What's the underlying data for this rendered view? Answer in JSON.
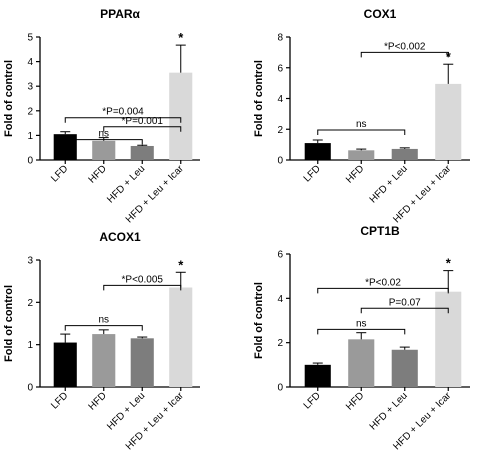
{
  "chart_data": [
    {
      "type": "bar",
      "title": "PPARα",
      "ylabel": "Fold of control",
      "ylim": [
        0,
        5
      ],
      "yticks": [
        "0",
        "1",
        "2",
        "3",
        "4",
        "5"
      ],
      "categories": [
        "LFD",
        "HFD",
        "HFD + Leu",
        "HFD + Leu + Icar"
      ],
      "values": [
        1.05,
        0.78,
        0.57,
        3.55
      ],
      "errors": [
        0.1,
        0.13,
        0.03,
        1.12
      ],
      "bar_colors": [
        "#000000",
        "#9a9a9a",
        "#7d7d7d",
        "#d9d9d9"
      ],
      "star_label": "*",
      "comparisons": [
        {
          "from": 0,
          "to": 3,
          "level": 1.72,
          "label": "*P=0.004"
        },
        {
          "from": 1,
          "to": 3,
          "level": 1.35,
          "label": "*P=0.001"
        },
        {
          "from": 0,
          "to": 2,
          "level": 0.83,
          "label": "ns"
        }
      ]
    },
    {
      "type": "bar",
      "title": "COX1",
      "ylabel": "Fold of control",
      "ylim": [
        0,
        8
      ],
      "yticks": [
        "0",
        "2",
        "4",
        "6",
        "8"
      ],
      "categories": [
        "LFD",
        "HFD",
        "HFD + Leu",
        "HFD + Leu + Icar"
      ],
      "values": [
        1.1,
        0.63,
        0.72,
        4.95
      ],
      "errors": [
        0.2,
        0.08,
        0.07,
        1.28
      ],
      "bar_colors": [
        "#000000",
        "#9a9a9a",
        "#7d7d7d",
        "#d9d9d9"
      ],
      "star_label": "*",
      "comparisons": [
        {
          "from": 1,
          "to": 3,
          "level": 7.0,
          "label": "*P<0.002"
        },
        {
          "from": 0,
          "to": 2,
          "level": 1.95,
          "label": "ns"
        }
      ]
    },
    {
      "type": "bar",
      "title": "ACOX1",
      "ylabel": "Fold of control",
      "ylim": [
        0,
        3
      ],
      "yticks": [
        "0",
        "1",
        "2",
        "3"
      ],
      "categories": [
        "LFD",
        "HFD",
        "HFD + Leu",
        "HFD + Leu + Icar"
      ],
      "values": [
        1.05,
        1.25,
        1.15,
        2.35
      ],
      "errors": [
        0.2,
        0.1,
        0.03,
        0.36
      ],
      "bar_colors": [
        "#000000",
        "#9a9a9a",
        "#7d7d7d",
        "#d9d9d9"
      ],
      "star_label": "*",
      "comparisons": [
        {
          "from": 1,
          "to": 3,
          "level": 2.4,
          "label": "*P<0.005"
        },
        {
          "from": 0,
          "to": 2,
          "level": 1.45,
          "label": "ns"
        }
      ]
    },
    {
      "type": "bar",
      "title": "CPT1B",
      "ylabel": "Fold of control",
      "ylim": [
        0,
        6
      ],
      "yticks": [
        "0",
        "2",
        "4",
        "6"
      ],
      "categories": [
        "LFD",
        "HFD",
        "HFD + Leu",
        "HFD + Leu + Icar"
      ],
      "values": [
        1.0,
        2.15,
        1.68,
        4.3
      ],
      "errors": [
        0.08,
        0.3,
        0.12,
        0.95
      ],
      "bar_colors": [
        "#000000",
        "#9a9a9a",
        "#7d7d7d",
        "#d9d9d9"
      ],
      "star_label": "*",
      "comparisons": [
        {
          "from": 0,
          "to": 3,
          "level": 4.45,
          "label": "*P<0.02"
        },
        {
          "from": 1,
          "to": 3,
          "level": 3.55,
          "label": "P=0.07"
        },
        {
          "from": 0,
          "to": 2,
          "level": 2.6,
          "label": "ns"
        }
      ]
    }
  ]
}
